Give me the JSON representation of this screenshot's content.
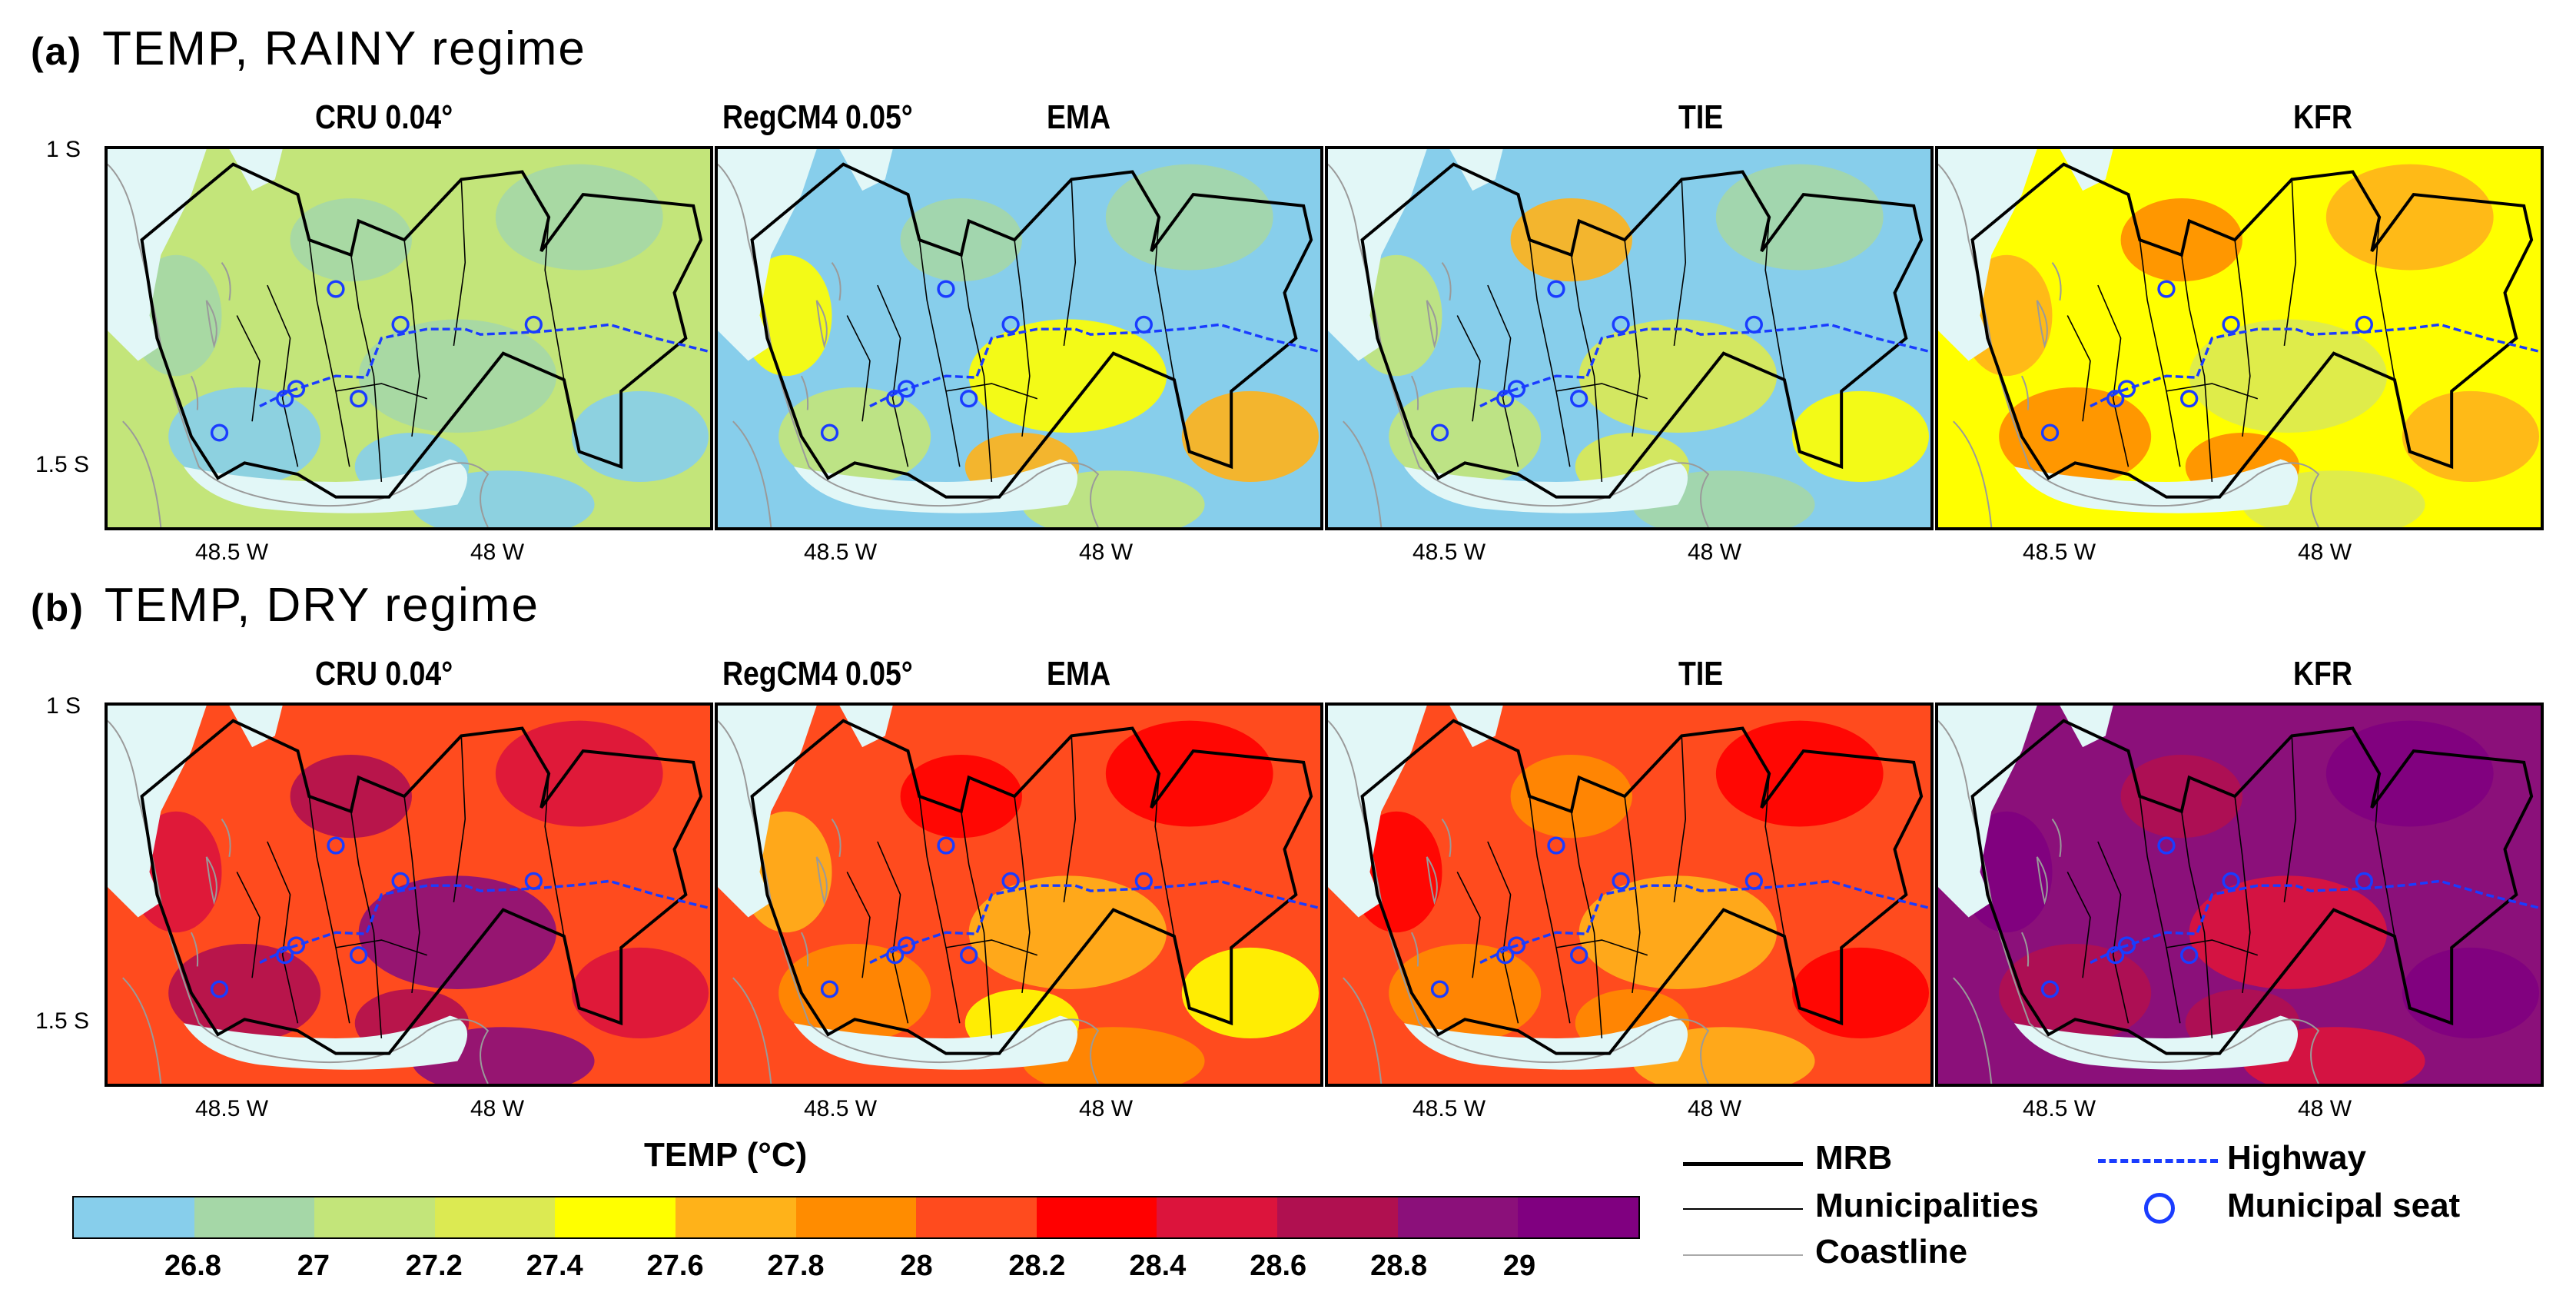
{
  "rows": [
    {
      "tag": "(a)",
      "title": "TEMP, RAINY regime"
    },
    {
      "tag": "(b)",
      "title": "TEMP, DRY regime"
    }
  ],
  "panels": {
    "cru": "CRU 0.04°",
    "regcm": "RegCM4 0.05°",
    "ema": "EMA",
    "tie": "TIE",
    "kfr": "KFR"
  },
  "axes": {
    "y_ticks": [
      "1 S",
      "1.5 S"
    ],
    "x_ticks": [
      "48.5 W",
      "48 W"
    ]
  },
  "colorbar": {
    "title": "TEMP (°C)",
    "labels": [
      "26.8",
      "27",
      "27.2",
      "27.4",
      "27.6",
      "27.8",
      "28",
      "28.2",
      "28.4",
      "28.6",
      "28.8",
      "29"
    ],
    "colors": [
      "#87ceeb",
      "#a5d7a7",
      "#c3e57a",
      "#dcea52",
      "#ffff00",
      "#ffb219",
      "#ff8c00",
      "#ff4b1e",
      "#ff0000",
      "#dc143c",
      "#b01050",
      "#8b107a",
      "#800080"
    ]
  },
  "legend": {
    "mrb": "MRB",
    "municipalities": "Municipalities",
    "coastline": "Coastline",
    "highway": "Highway",
    "seat": "Municipal seat"
  },
  "chart_data": [
    {
      "type": "heatmap",
      "title": "CRU 0.04°",
      "regime": "RAINY",
      "dominant_bin": "27–27.2",
      "colors": [
        "#c3e57a",
        "#a5d7a7",
        "#87ceeb"
      ]
    },
    {
      "type": "heatmap",
      "title": "EMA",
      "regime": "RAINY",
      "dominant_bin": "26.8–27.2",
      "colors": [
        "#87ceeb",
        "#a5d7a7",
        "#c3e57a",
        "#ffff00",
        "#ffb219"
      ]
    },
    {
      "type": "heatmap",
      "title": "TIE",
      "regime": "RAINY",
      "dominant_bin": "26.8–27.4",
      "colors": [
        "#87ceeb",
        "#a5d7a7",
        "#c3e57a",
        "#dcea52",
        "#ffff00",
        "#ffb219"
      ]
    },
    {
      "type": "heatmap",
      "title": "KFR",
      "regime": "RAINY",
      "dominant_bin": "27.6–28",
      "colors": [
        "#ffff00",
        "#ffb219",
        "#ff8c00",
        "#dcea52"
      ]
    },
    {
      "type": "heatmap",
      "title": "CRU 0.04°",
      "regime": "DRY",
      "dominant_bin": "28.2–28.8",
      "colors": [
        "#ff4b1e",
        "#dc143c",
        "#b01050",
        "#8b107a"
      ]
    },
    {
      "type": "heatmap",
      "title": "EMA",
      "regime": "DRY",
      "dominant_bin": "27.8–28.4",
      "colors": [
        "#ff4b1e",
        "#ff0000",
        "#ff8c00",
        "#ffb219",
        "#ffff00"
      ]
    },
    {
      "type": "heatmap",
      "title": "TIE",
      "regime": "DRY",
      "dominant_bin": "27.8–28.4",
      "colors": [
        "#ff4b1e",
        "#ff0000",
        "#ff8c00",
        "#ffb219"
      ]
    },
    {
      "type": "heatmap",
      "title": "KFR",
      "regime": "DRY",
      "dominant_bin": "28.6–29",
      "colors": [
        "#8b107a",
        "#800080",
        "#b01050",
        "#dc143c"
      ]
    }
  ]
}
